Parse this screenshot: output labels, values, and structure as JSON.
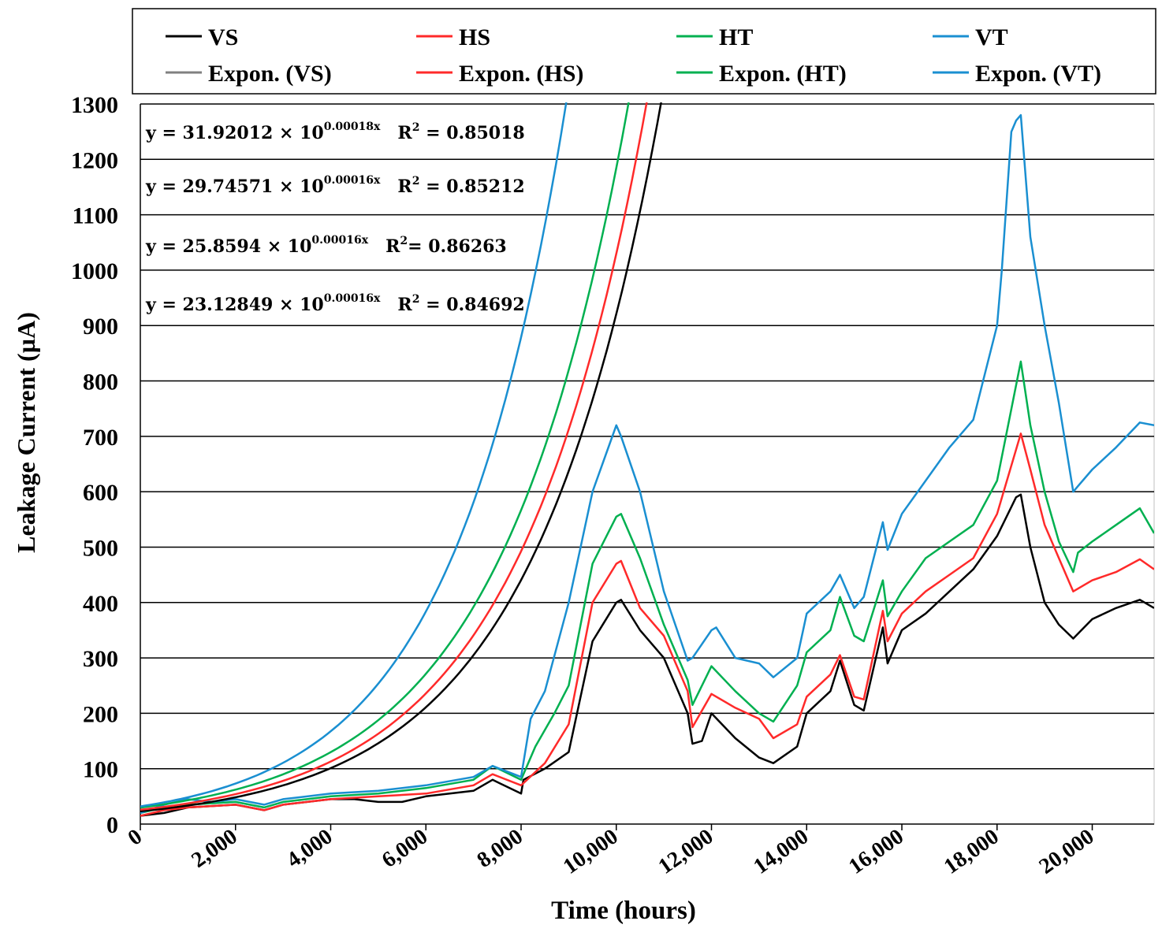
{
  "chart_data": {
    "type": "line",
    "title": "",
    "xlabel": "Time (hours)",
    "ylabel": "Leakage Current (µA)",
    "xlim": [
      0,
      21300
    ],
    "ylim": [
      0,
      1300
    ],
    "x_ticks": [
      0,
      2000,
      4000,
      6000,
      8000,
      10000,
      12000,
      14000,
      16000,
      18000,
      20000
    ],
    "x_tick_labels": [
      "0",
      "2,000",
      "4,000",
      "6,000",
      "8,000",
      "10,000",
      "12,000",
      "14,000",
      "16,000",
      "18,000",
      "20,000"
    ],
    "y_ticks": [
      0,
      100,
      200,
      300,
      400,
      500,
      600,
      700,
      800,
      900,
      1000,
      1100,
      1200,
      1300
    ],
    "y_tick_labels": [
      "0",
      "100",
      "200",
      "300",
      "400",
      "500",
      "600",
      "700",
      "800",
      "900",
      "1000",
      "1100",
      "1200",
      "1300"
    ],
    "grid": "horizontal",
    "legend_position": "top",
    "legend": [
      {
        "label": "VS",
        "color": "#000000"
      },
      {
        "label": "HS",
        "color": "#ff2a2a"
      },
      {
        "label": "HT",
        "color": "#00b050"
      },
      {
        "label": "VT",
        "color": "#1a8fd1"
      },
      {
        "label": "Expon. (VS)",
        "color": "#808080"
      },
      {
        "label": "Expon. (HS)",
        "color": "#ff2a2a"
      },
      {
        "label": "Expon. (HT)",
        "color": "#00b050"
      },
      {
        "label": "Expon. (VT)",
        "color": "#1a8fd1"
      }
    ],
    "series": [
      {
        "name": "VS",
        "color": "#000000",
        "x": [
          0,
          500,
          1000,
          2000,
          2600,
          3000,
          4000,
          4500,
          5000,
          5500,
          6000,
          7000,
          7400,
          8000,
          8050,
          8500,
          9000,
          9500,
          10000,
          10100,
          10500,
          11000,
          11500,
          11600,
          11800,
          12000,
          12500,
          13000,
          13300,
          13800,
          14000,
          14500,
          14700,
          15000,
          15200,
          15600,
          15700,
          16000,
          16500,
          17000,
          17500,
          18000,
          18400,
          18500,
          18700,
          19000,
          19300,
          19600,
          20000,
          20500,
          21000,
          21300
        ],
        "values": [
          15,
          20,
          30,
          35,
          25,
          35,
          45,
          45,
          40,
          40,
          50,
          60,
          80,
          55,
          80,
          100,
          130,
          330,
          400,
          405,
          350,
          300,
          200,
          145,
          150,
          200,
          155,
          120,
          110,
          140,
          200,
          240,
          295,
          215,
          205,
          355,
          290,
          350,
          380,
          420,
          460,
          520,
          590,
          595,
          500,
          400,
          360,
          335,
          370,
          390,
          405,
          390
        ]
      },
      {
        "name": "HS",
        "color": "#ff2a2a",
        "x": [
          0,
          500,
          1000,
          2000,
          2600,
          3000,
          4000,
          5000,
          6000,
          7000,
          7400,
          8000,
          8500,
          9000,
          9500,
          10000,
          10100,
          10500,
          11000,
          11500,
          11600,
          12000,
          12500,
          13000,
          13300,
          13800,
          14000,
          14500,
          14700,
          15000,
          15200,
          15600,
          15700,
          16000,
          16500,
          17000,
          17500,
          18000,
          18500,
          18700,
          19000,
          19300,
          19600,
          20000,
          20500,
          21000,
          21300
        ],
        "values": [
          15,
          25,
          30,
          35,
          25,
          35,
          45,
          50,
          55,
          70,
          90,
          70,
          110,
          180,
          400,
          470,
          475,
          390,
          340,
          240,
          175,
          235,
          210,
          190,
          155,
          180,
          230,
          270,
          305,
          230,
          225,
          385,
          330,
          380,
          420,
          450,
          480,
          560,
          705,
          640,
          540,
          480,
          420,
          440,
          455,
          478,
          460
        ]
      },
      {
        "name": "HT",
        "color": "#00b050",
        "x": [
          0,
          500,
          1000,
          2000,
          2600,
          3000,
          4000,
          5000,
          6000,
          7000,
          7400,
          8000,
          8300,
          8700,
          9000,
          9500,
          10000,
          10100,
          10500,
          11000,
          11500,
          11600,
          12000,
          12500,
          13000,
          13300,
          13800,
          14000,
          14500,
          14700,
          15000,
          15200,
          15600,
          15700,
          16000,
          16500,
          17000,
          17500,
          18000,
          18500,
          18700,
          19000,
          19300,
          19600,
          19700,
          20000,
          20500,
          21000,
          21300
        ],
        "values": [
          20,
          30,
          35,
          40,
          30,
          40,
          50,
          55,
          65,
          80,
          105,
          80,
          140,
          200,
          250,
          470,
          555,
          560,
          480,
          360,
          260,
          215,
          285,
          240,
          200,
          185,
          250,
          310,
          350,
          410,
          340,
          330,
          440,
          375,
          420,
          480,
          510,
          540,
          620,
          835,
          720,
          600,
          510,
          455,
          490,
          510,
          540,
          570,
          525
        ]
      },
      {
        "name": "VT",
        "color": "#1a8fd1",
        "x": [
          0,
          500,
          1000,
          1500,
          2000,
          2600,
          3000,
          4000,
          5000,
          6000,
          7000,
          7400,
          8000,
          8200,
          8500,
          9000,
          9500,
          10000,
          10100,
          10500,
          11000,
          11500,
          11600,
          12000,
          12100,
          12500,
          13000,
          13300,
          13800,
          14000,
          14500,
          14700,
          15000,
          15200,
          15600,
          15700,
          16000,
          16500,
          17000,
          17500,
          18000,
          18100,
          18300,
          18400,
          18500,
          18700,
          19000,
          19300,
          19600,
          19700,
          20000,
          20500,
          21000,
          21300
        ],
        "values": [
          20,
          35,
          45,
          40,
          45,
          35,
          45,
          55,
          60,
          70,
          85,
          105,
          85,
          190,
          240,
          400,
          600,
          720,
          700,
          600,
          420,
          295,
          300,
          350,
          355,
          300,
          290,
          265,
          300,
          380,
          420,
          450,
          390,
          410,
          545,
          495,
          560,
          620,
          680,
          730,
          900,
          1000,
          1250,
          1270,
          1280,
          1060,
          900,
          760,
          600,
          610,
          640,
          680,
          725,
          720
        ]
      },
      {
        "name": "Expon. (VS)",
        "color": "#000000",
        "fit": {
          "a": 23.12849,
          "b": 0.00016
        }
      },
      {
        "name": "Expon. (HS)",
        "color": "#ff2a2a",
        "fit": {
          "a": 25.8594,
          "b": 0.00016
        }
      },
      {
        "name": "Expon. (HT)",
        "color": "#00b050",
        "fit": {
          "a": 29.74571,
          "b": 0.00016
        }
      },
      {
        "name": "Expon. (VT)",
        "color": "#1a8fd1",
        "fit": {
          "a": 31.92012,
          "b": 0.00018
        }
      }
    ],
    "annotations": [
      {
        "y": "y = 31.92012 × 10",
        "exp": "0.00018x",
        "r2": "R",
        "r2sup": "2",
        "r2val": " = 0.85018"
      },
      {
        "y": "y = 29.74571 × 10",
        "exp": "0.00016x",
        "r2": "R",
        "r2sup": "2",
        "r2val": " = 0.85212"
      },
      {
        "y": "y = 25.8594 × 10",
        "exp": "0.00016x",
        "r2": "R",
        "r2sup": "2",
        "r2val": "= 0.86263"
      },
      {
        "y": "y = 23.12849 × 10",
        "exp": "0.00016x",
        "r2": "R",
        "r2sup": "2",
        "r2val": " = 0.84692"
      }
    ]
  }
}
